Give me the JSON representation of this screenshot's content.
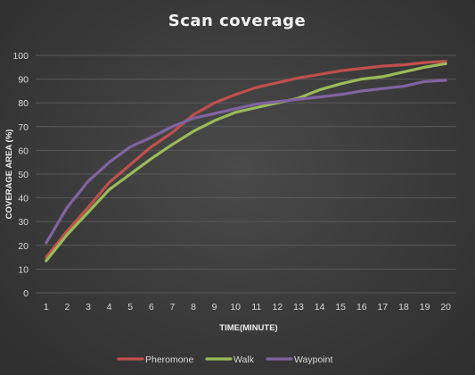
{
  "chart_data": {
    "type": "line",
    "title": "Scan coverage",
    "xlabel": "TIME(MINUTE)",
    "ylabel": "COVERAGE AREA (%)",
    "x": [
      1,
      2,
      3,
      4,
      5,
      6,
      7,
      8,
      9,
      10,
      11,
      12,
      13,
      14,
      15,
      16,
      17,
      18,
      19,
      20
    ],
    "ylim": [
      0,
      100
    ],
    "yticks": [
      0,
      10,
      20,
      30,
      40,
      50,
      60,
      70,
      80,
      90,
      100
    ],
    "grid": true,
    "legend_position": "bottom",
    "series": [
      {
        "name": "Pheromone",
        "color": "#c0504d",
        "values": [
          15,
          26,
          36,
          46.5,
          54,
          61.5,
          67.5,
          75,
          80,
          83.5,
          86.5,
          88.5,
          90.5,
          92,
          93.5,
          94.5,
          95.5,
          96,
          97,
          97.5
        ]
      },
      {
        "name": "Walk",
        "color": "#9bbb59",
        "values": [
          13.5,
          24.5,
          34,
          43.5,
          50,
          56.5,
          62.5,
          68,
          72.5,
          76,
          78,
          80,
          82,
          85.5,
          88,
          90,
          91,
          93,
          95,
          96.5
        ]
      },
      {
        "name": "Waypoint",
        "color": "#8064a2",
        "values": [
          21,
          36,
          47,
          55,
          61.5,
          65.5,
          70,
          73.5,
          75.5,
          77.5,
          79.5,
          80.5,
          81.5,
          82.5,
          83.5,
          85,
          86,
          87,
          89,
          89.5
        ]
      }
    ]
  }
}
